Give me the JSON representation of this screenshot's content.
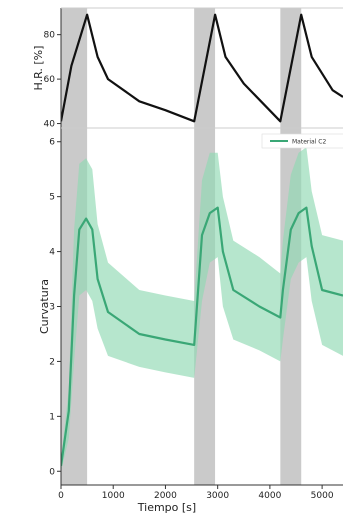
{
  "chart_data": [
    {
      "id": "top",
      "type": "line",
      "ylabel": "H.R. [%]",
      "xlim": [
        0,
        5400
      ],
      "ylim": [
        38,
        92
      ],
      "yticks": [
        40,
        60,
        80
      ],
      "shaded_intervals": [
        [
          0,
          500
        ],
        [
          2550,
          2950
        ],
        [
          4200,
          4600
        ]
      ],
      "series": [
        {
          "color": "#111111",
          "x": [
            0,
            200,
            500,
            700,
            900,
            1500,
            2000,
            2550,
            2950,
            3150,
            3500,
            4200,
            4600,
            4800,
            5200,
            5400
          ],
          "y": [
            41,
            66,
            89,
            70,
            60,
            50,
            46,
            41,
            89,
            70,
            58,
            41,
            89,
            70,
            55,
            52
          ]
        }
      ]
    },
    {
      "id": "bottom",
      "type": "line",
      "xlabel": "Tiempo [s]",
      "ylabel": "Curvatura",
      "xlim": [
        0,
        5400
      ],
      "ylim": [
        -0.25,
        6.25
      ],
      "xticks": [
        0,
        1000,
        2000,
        3000,
        4000,
        5000
      ],
      "yticks": [
        0,
        1,
        2,
        3,
        4,
        5,
        6
      ],
      "shaded_intervals": [
        [
          0,
          500
        ],
        [
          2550,
          2950
        ],
        [
          4200,
          4600
        ]
      ],
      "legend": {
        "label": "Material C2",
        "location": "top-right"
      },
      "series": [
        {
          "name": "Material C2",
          "color": "#3aa776",
          "band_color": "#8fd9b2",
          "x": [
            0,
            150,
            250,
            350,
            480,
            600,
            700,
            900,
            1500,
            2000,
            2550,
            2700,
            2850,
            3000,
            3100,
            3300,
            3800,
            4200,
            4250,
            4400,
            4550,
            4700,
            4800,
            5000,
            5400
          ],
          "y": [
            0.1,
            1.1,
            3.2,
            4.4,
            4.6,
            4.4,
            3.5,
            2.9,
            2.5,
            2.4,
            2.3,
            4.3,
            4.7,
            4.8,
            4.0,
            3.3,
            3.0,
            2.8,
            3.3,
            4.4,
            4.7,
            4.8,
            4.1,
            3.3,
            3.2
          ],
          "lower": [
            0.0,
            0.6,
            2.0,
            3.2,
            3.3,
            3.1,
            2.6,
            2.1,
            1.9,
            1.8,
            1.7,
            3.1,
            3.8,
            3.9,
            3.0,
            2.4,
            2.2,
            2.0,
            2.4,
            3.5,
            3.8,
            3.9,
            3.1,
            2.3,
            2.1
          ],
          "upper": [
            0.2,
            1.5,
            4.4,
            5.6,
            5.7,
            5.5,
            4.5,
            3.8,
            3.3,
            3.2,
            3.1,
            5.3,
            5.8,
            5.8,
            5.0,
            4.2,
            3.9,
            3.6,
            4.2,
            5.4,
            5.8,
            5.9,
            5.1,
            4.3,
            4.2
          ]
        }
      ]
    }
  ]
}
